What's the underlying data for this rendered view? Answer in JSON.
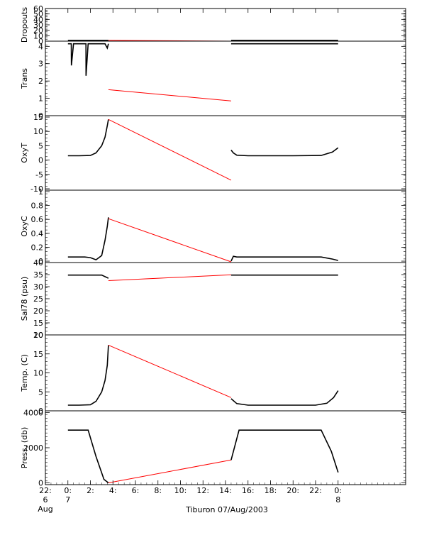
{
  "title": "Tiburon 07/Aug/2003",
  "colors": {
    "data": "#000000",
    "interp": "#ff0000",
    "axes": "#000000",
    "background": "#ffffff"
  },
  "x_axis": {
    "range": [
      -2,
      30
    ],
    "ticks": [
      {
        "v": -2,
        "l1": "22:",
        "l2": "6",
        "l3": "Aug"
      },
      {
        "v": 0,
        "l1": "0:",
        "l2": "7",
        "l3": ""
      },
      {
        "v": 2,
        "l1": "2:",
        "l2": "",
        "l3": ""
      },
      {
        "v": 4,
        "l1": "4:",
        "l2": "",
        "l3": ""
      },
      {
        "v": 6,
        "l1": "6:",
        "l2": "",
        "l3": ""
      },
      {
        "v": 8,
        "l1": "8:",
        "l2": "",
        "l3": ""
      },
      {
        "v": 10,
        "l1": "10:",
        "l2": "",
        "l3": ""
      },
      {
        "v": 12,
        "l1": "12:",
        "l2": "",
        "l3": ""
      },
      {
        "v": 14,
        "l1": "14:",
        "l2": "",
        "l3": ""
      },
      {
        "v": 16,
        "l1": "16:",
        "l2": "",
        "l3": ""
      },
      {
        "v": 18,
        "l1": "18:",
        "l2": "",
        "l3": ""
      },
      {
        "v": 20,
        "l1": "20:",
        "l2": "",
        "l3": ""
      },
      {
        "v": 22,
        "l1": "22:",
        "l2": "",
        "l3": ""
      },
      {
        "v": 24,
        "l1": "0:",
        "l2": "8",
        "l3": ""
      }
    ]
  },
  "chart_data": [
    {
      "type": "line",
      "ylabel": "Dropouts",
      "ylim": [
        0,
        60
      ],
      "yticks": [
        0,
        10,
        20,
        30,
        40,
        50,
        60
      ],
      "series": [
        {
          "style": "data",
          "x": [
            0,
            3.6
          ],
          "y": [
            1.5,
            1.5
          ]
        },
        {
          "style": "interp",
          "x": [
            3.6,
            14.5
          ],
          "y": [
            1.5,
            0
          ]
        },
        {
          "style": "data",
          "x": [
            14.5,
            24
          ],
          "y": [
            1.5,
            1.5
          ]
        }
      ]
    },
    {
      "type": "line",
      "ylabel": "Trans",
      "ylim": [
        0,
        4.3
      ],
      "yticks": [
        0,
        1,
        2,
        3,
        4
      ],
      "series": [
        {
          "style": "data",
          "x": [
            0,
            0.2,
            0.3,
            0.31,
            0.5,
            1.5,
            1.6,
            1.61,
            1.8,
            3.3,
            3.5,
            3.6
          ],
          "y": [
            4.15,
            4.15,
            4.15,
            2.9,
            4.15,
            4.15,
            4.15,
            2.3,
            4.15,
            4.15,
            3.9,
            4.15
          ]
        },
        {
          "style": "interp",
          "x": [
            3.6,
            14.5
          ],
          "y": [
            1.5,
            0.85
          ]
        },
        {
          "style": "data",
          "x": [
            14.5,
            16,
            18,
            20,
            22,
            24
          ],
          "y": [
            4.15,
            4.15,
            4.15,
            4.15,
            4.15,
            4.15
          ]
        }
      ]
    },
    {
      "type": "line",
      "ylabel": "OxyT",
      "ylim": [
        -10.5,
        15.5
      ],
      "yticks": [
        -10,
        -5,
        0,
        5,
        10,
        15
      ],
      "series": [
        {
          "style": "data",
          "x": [
            0,
            1,
            2,
            2.5,
            3,
            3.3,
            3.5,
            3.6
          ],
          "y": [
            1.5,
            1.5,
            1.6,
            2.5,
            5,
            8,
            12,
            14.2
          ]
        },
        {
          "style": "interp",
          "x": [
            3.6,
            14.5
          ],
          "y": [
            14.2,
            -7
          ]
        },
        {
          "style": "data",
          "x": [
            14.5,
            14.7,
            15,
            16,
            20,
            22.5,
            23.5,
            24
          ],
          "y": [
            3.5,
            2.5,
            1.7,
            1.5,
            1.5,
            1.6,
            2.8,
            4.3
          ]
        }
      ]
    },
    {
      "type": "line",
      "ylabel": "OxyC",
      "ylim": [
        -0.02,
        1.02
      ],
      "yticks": [
        0.0,
        0.2,
        0.4,
        0.6,
        0.8,
        1.0
      ],
      "series": [
        {
          "style": "data",
          "x": [
            0,
            1.5,
            2,
            2.5,
            3,
            3.3,
            3.5,
            3.6
          ],
          "y": [
            0.06,
            0.06,
            0.05,
            0.02,
            0.08,
            0.3,
            0.5,
            0.63
          ]
        },
        {
          "style": "interp",
          "x": [
            3.6,
            14.5
          ],
          "y": [
            0.61,
            -0.01
          ]
        },
        {
          "style": "data",
          "x": [
            14.5,
            14.7,
            15,
            16,
            22.5,
            23.5,
            24
          ],
          "y": [
            0.0,
            0.07,
            0.06,
            0.06,
            0.06,
            0.03,
            0.01
          ]
        }
      ]
    },
    {
      "type": "line",
      "ylabel": "Sal78 (psu)",
      "ylim": [
        10,
        40
      ],
      "yticks": [
        10,
        15,
        20,
        25,
        30,
        35,
        40
      ],
      "series": [
        {
          "style": "data",
          "x": [
            0,
            3.0,
            3.6
          ],
          "y": [
            34.8,
            34.8,
            33.5
          ]
        },
        {
          "style": "interp",
          "x": [
            3.6,
            14.5
          ],
          "y": [
            32.5,
            34.9
          ]
        },
        {
          "style": "data",
          "x": [
            14.5,
            24
          ],
          "y": [
            34.8,
            34.8
          ]
        }
      ]
    },
    {
      "type": "line",
      "ylabel": "Temp. (C)",
      "ylim": [
        0,
        20
      ],
      "yticks": [
        0,
        5,
        10,
        15,
        20
      ],
      "series": [
        {
          "style": "data",
          "x": [
            0,
            1.0,
            2.0,
            2.5,
            3.0,
            3.3,
            3.5,
            3.6
          ],
          "y": [
            1.5,
            1.5,
            1.6,
            2.5,
            5,
            8,
            12,
            17.3
          ]
        },
        {
          "style": "interp",
          "x": [
            3.6,
            14.5
          ],
          "y": [
            17.3,
            3.5
          ]
        },
        {
          "style": "data",
          "x": [
            14.5,
            15,
            16,
            22,
            23,
            23.6,
            24
          ],
          "y": [
            3.2,
            1.9,
            1.5,
            1.5,
            2,
            3.5,
            5.3
          ]
        }
      ]
    },
    {
      "type": "line",
      "ylabel": "Press. (db)",
      "ylim": [
        -100,
        4100
      ],
      "yticks": [
        0,
        2000,
        4000
      ],
      "series": [
        {
          "style": "data",
          "x": [
            0,
            1.8,
            2.5,
            3.2,
            3.6
          ],
          "y": [
            3000,
            3000,
            1500,
            200,
            0
          ]
        },
        {
          "style": "interp",
          "x": [
            3.6,
            14.5
          ],
          "y": [
            0,
            1300
          ]
        },
        {
          "style": "data",
          "x": [
            14.5,
            15.2,
            16,
            20,
            22.5,
            23.4,
            24
          ],
          "y": [
            1300,
            3000,
            3000,
            3000,
            3000,
            1800,
            600
          ]
        }
      ]
    }
  ]
}
